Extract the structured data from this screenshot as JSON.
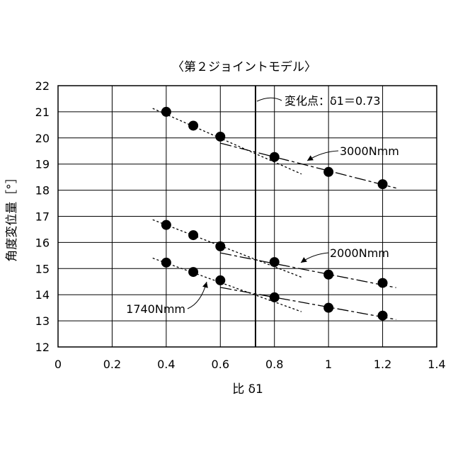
{
  "chart_data": {
    "type": "scatter",
    "title": "〈第２ジョイントモデル〉",
    "xlabel": "比 δ1",
    "ylabel": "角度変位量［°］",
    "xlim": [
      0,
      1.4
    ],
    "ylim": [
      12,
      22
    ],
    "xticks": [
      0,
      0.2,
      0.4,
      0.6,
      0.8,
      1,
      1.2,
      1.4
    ],
    "xtick_labels": [
      "0",
      "0.2",
      "0.4",
      "0.6",
      "0.8",
      "1",
      "1.2",
      "1.4"
    ],
    "yticks": [
      12,
      13,
      14,
      15,
      16,
      17,
      18,
      19,
      20,
      21,
      22
    ],
    "ytick_labels": [
      "12",
      "13",
      "14",
      "15",
      "16",
      "17",
      "18",
      "19",
      "20",
      "21",
      "22"
    ],
    "grid": true,
    "change_point": {
      "x": 0.73,
      "label": "変化点：δ1＝0.73"
    },
    "series": [
      {
        "name": "3000Nmm",
        "x": [
          0.4,
          0.5,
          0.6,
          0.8,
          1.0,
          1.2
        ],
        "y": [
          21.0,
          20.47,
          20.05,
          19.27,
          18.7,
          18.23
        ],
        "fit_before": {
          "x": [
            0.35,
            0.9
          ],
          "y": [
            21.13,
            18.62
          ]
        },
        "fit_after": {
          "x": [
            0.6,
            1.25
          ],
          "y": [
            19.8,
            18.08
          ]
        }
      },
      {
        "name": "2000Nmm",
        "x": [
          0.4,
          0.5,
          0.6,
          0.8,
          1.0,
          1.2
        ],
        "y": [
          16.67,
          16.28,
          15.85,
          15.25,
          14.77,
          14.45
        ],
        "fit_before": {
          "x": [
            0.35,
            0.9
          ],
          "y": [
            16.87,
            14.67
          ]
        },
        "fit_after": {
          "x": [
            0.6,
            1.25
          ],
          "y": [
            15.6,
            14.27
          ]
        }
      },
      {
        "name": "1740Nmm",
        "x": [
          0.4,
          0.5,
          0.6,
          0.8,
          1.0,
          1.2
        ],
        "y": [
          15.23,
          14.87,
          14.55,
          13.9,
          13.5,
          13.2
        ],
        "fit_before": {
          "x": [
            0.35,
            0.9
          ],
          "y": [
            15.4,
            13.35
          ]
        },
        "fit_after": {
          "x": [
            0.6,
            1.25
          ],
          "y": [
            14.28,
            13.05
          ]
        }
      }
    ]
  }
}
